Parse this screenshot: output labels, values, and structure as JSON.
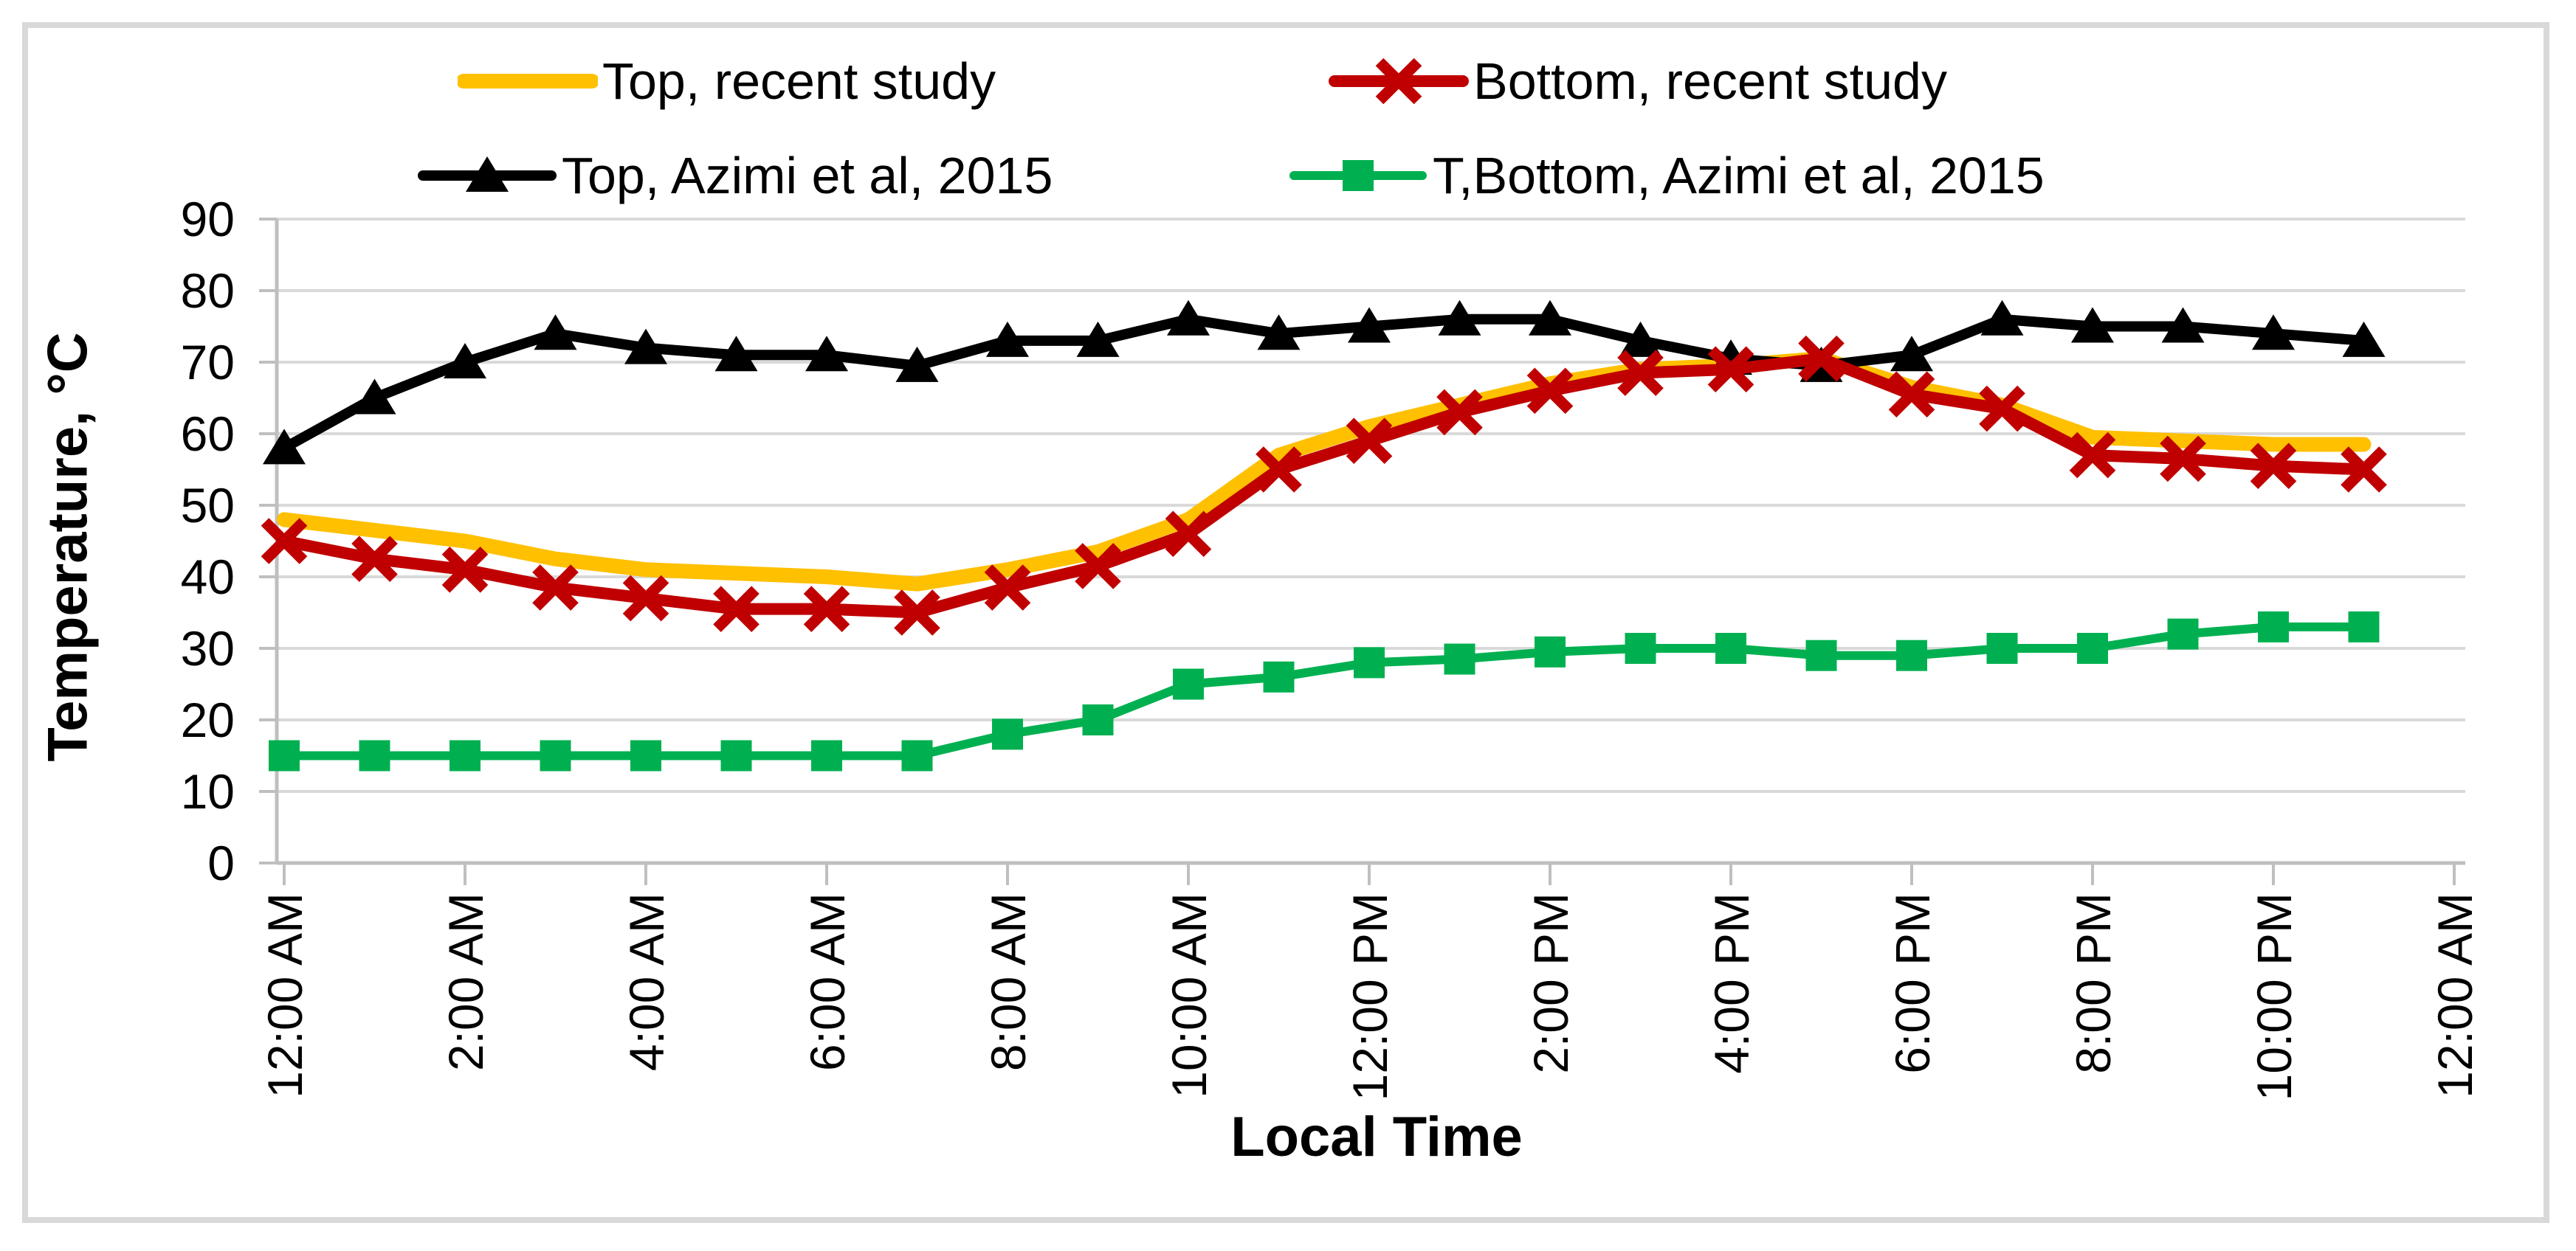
{
  "window": {
    "background": "#FFFFFF",
    "chart_border_color": "#D9D9D9"
  },
  "chart_data": {
    "type": "line",
    "title": "",
    "xlabel": "Local Time",
    "ylabel": "Temperature, °C",
    "ylim": [
      0,
      90
    ],
    "ytick_interval": 10,
    "yticks": [
      0,
      10,
      20,
      30,
      40,
      50,
      60,
      70,
      80,
      90
    ],
    "x_unit": "hour of local time, hourly points from 12:00 AM to 11:00 PM",
    "xticklabels": [
      "12:00 AM",
      "2:00 AM",
      "4:00 AM",
      "6:00 AM",
      "8:00 AM",
      "10:00 AM",
      "12:00 PM",
      "2:00 PM",
      "4:00 PM",
      "6:00 PM",
      "8:00 PM",
      "10:00 PM",
      "12:00 AM"
    ],
    "grid": "horizontal",
    "gridline_color": "#D9D9D9",
    "axis_color": "#BFBFBF",
    "legend_position": "top",
    "legend_rows": [
      [
        0,
        1
      ],
      [
        2,
        3
      ]
    ],
    "draw_order": [
      0,
      2,
      1,
      3
    ],
    "series": [
      {
        "name": "Top, recent study",
        "color": "#FFC000",
        "marker": "none",
        "values": [
          48,
          46.5,
          45,
          42.5,
          41,
          40.5,
          40,
          39,
          41,
          43.5,
          48,
          57,
          61,
          64,
          67,
          69,
          69.5,
          70.5,
          66.5,
          64,
          59.5,
          59,
          58.5,
          58.5
        ]
      },
      {
        "name": "Bottom, recent study",
        "color": "#C00000",
        "marker": "x",
        "values": [
          45,
          42.5,
          41,
          38.5,
          37,
          35.5,
          35.5,
          35,
          38.5,
          41.5,
          46,
          55,
          59,
          63,
          66,
          68.5,
          69,
          70.5,
          65.5,
          63.5,
          57,
          56.5,
          55.5,
          55
        ]
      },
      {
        "name": "Top, Azimi et al, 2015",
        "color": "#000000",
        "marker": "triangle",
        "values": [
          58,
          65,
          70,
          74,
          72,
          71,
          71,
          69.5,
          73,
          73,
          76,
          74,
          75,
          76,
          76,
          73,
          70.5,
          69.5,
          71,
          76,
          75,
          75,
          74,
          73
        ]
      },
      {
        "name": "T,Bottom, Azimi et al, 2015",
        "color": "#00B050",
        "marker": "square",
        "values": [
          15,
          15,
          15,
          15,
          15,
          15,
          15,
          15,
          18,
          20,
          25,
          26,
          28,
          28.5,
          29.5,
          30,
          30,
          29,
          29,
          30,
          30,
          32,
          33,
          33
        ]
      }
    ]
  }
}
